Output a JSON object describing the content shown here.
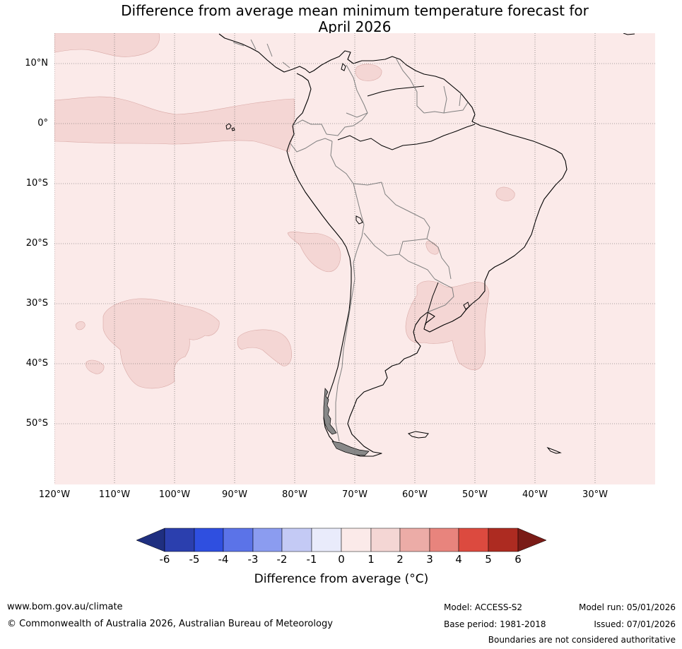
{
  "title": {
    "line1": "Difference from average mean minimum temperature forecast for",
    "line2": "April 2026"
  },
  "map": {
    "region": "South America and adjacent Pacific / Atlantic oceans",
    "lat_labels": [
      "10°N",
      "0°",
      "10°S",
      "20°S",
      "30°S",
      "40°S",
      "50°S"
    ],
    "lon_labels": [
      "120°W",
      "110°W",
      "100°W",
      "90°W",
      "80°W",
      "70°W",
      "60°W",
      "50°W",
      "40°W",
      "30°W"
    ],
    "background_anomaly_range": "0 to 1",
    "patch_anomaly_range": "1 to 2",
    "colors": {
      "base": "#fbeae9",
      "patch": "#f4d6d4",
      "patch_edge": "#d9a9a6",
      "coast": "#000000",
      "border": "#808080"
    }
  },
  "colorbar": {
    "labels": [
      "-6",
      "-5",
      "-4",
      "-3",
      "-2",
      "-1",
      "0",
      "1",
      "2",
      "3",
      "4",
      "5",
      "6"
    ],
    "colors": [
      "#1f2f80",
      "#2b3fae",
      "#2f4fe0",
      "#5b73e8",
      "#8b9cf0",
      "#c4caf5",
      "#e9ebfb",
      "#fbeae9",
      "#f4d6d4",
      "#ecaca7",
      "#e8847d",
      "#dc4a3f",
      "#ad2b21",
      "#7a1b16"
    ],
    "title": "Difference from average (°C)"
  },
  "footer": {
    "website": "www.bom.gov.au/climate",
    "copyright": "© Commonwealth of Australia 2026, Australian Bureau of Meteorology",
    "model": "Model: ACCESS-S2",
    "base_period": "Base period: 1981-2018",
    "model_run": "Model run: 05/01/2026",
    "issued": "Issued: 07/01/2026",
    "disclaimer": "Boundaries are not considered authoritative"
  }
}
